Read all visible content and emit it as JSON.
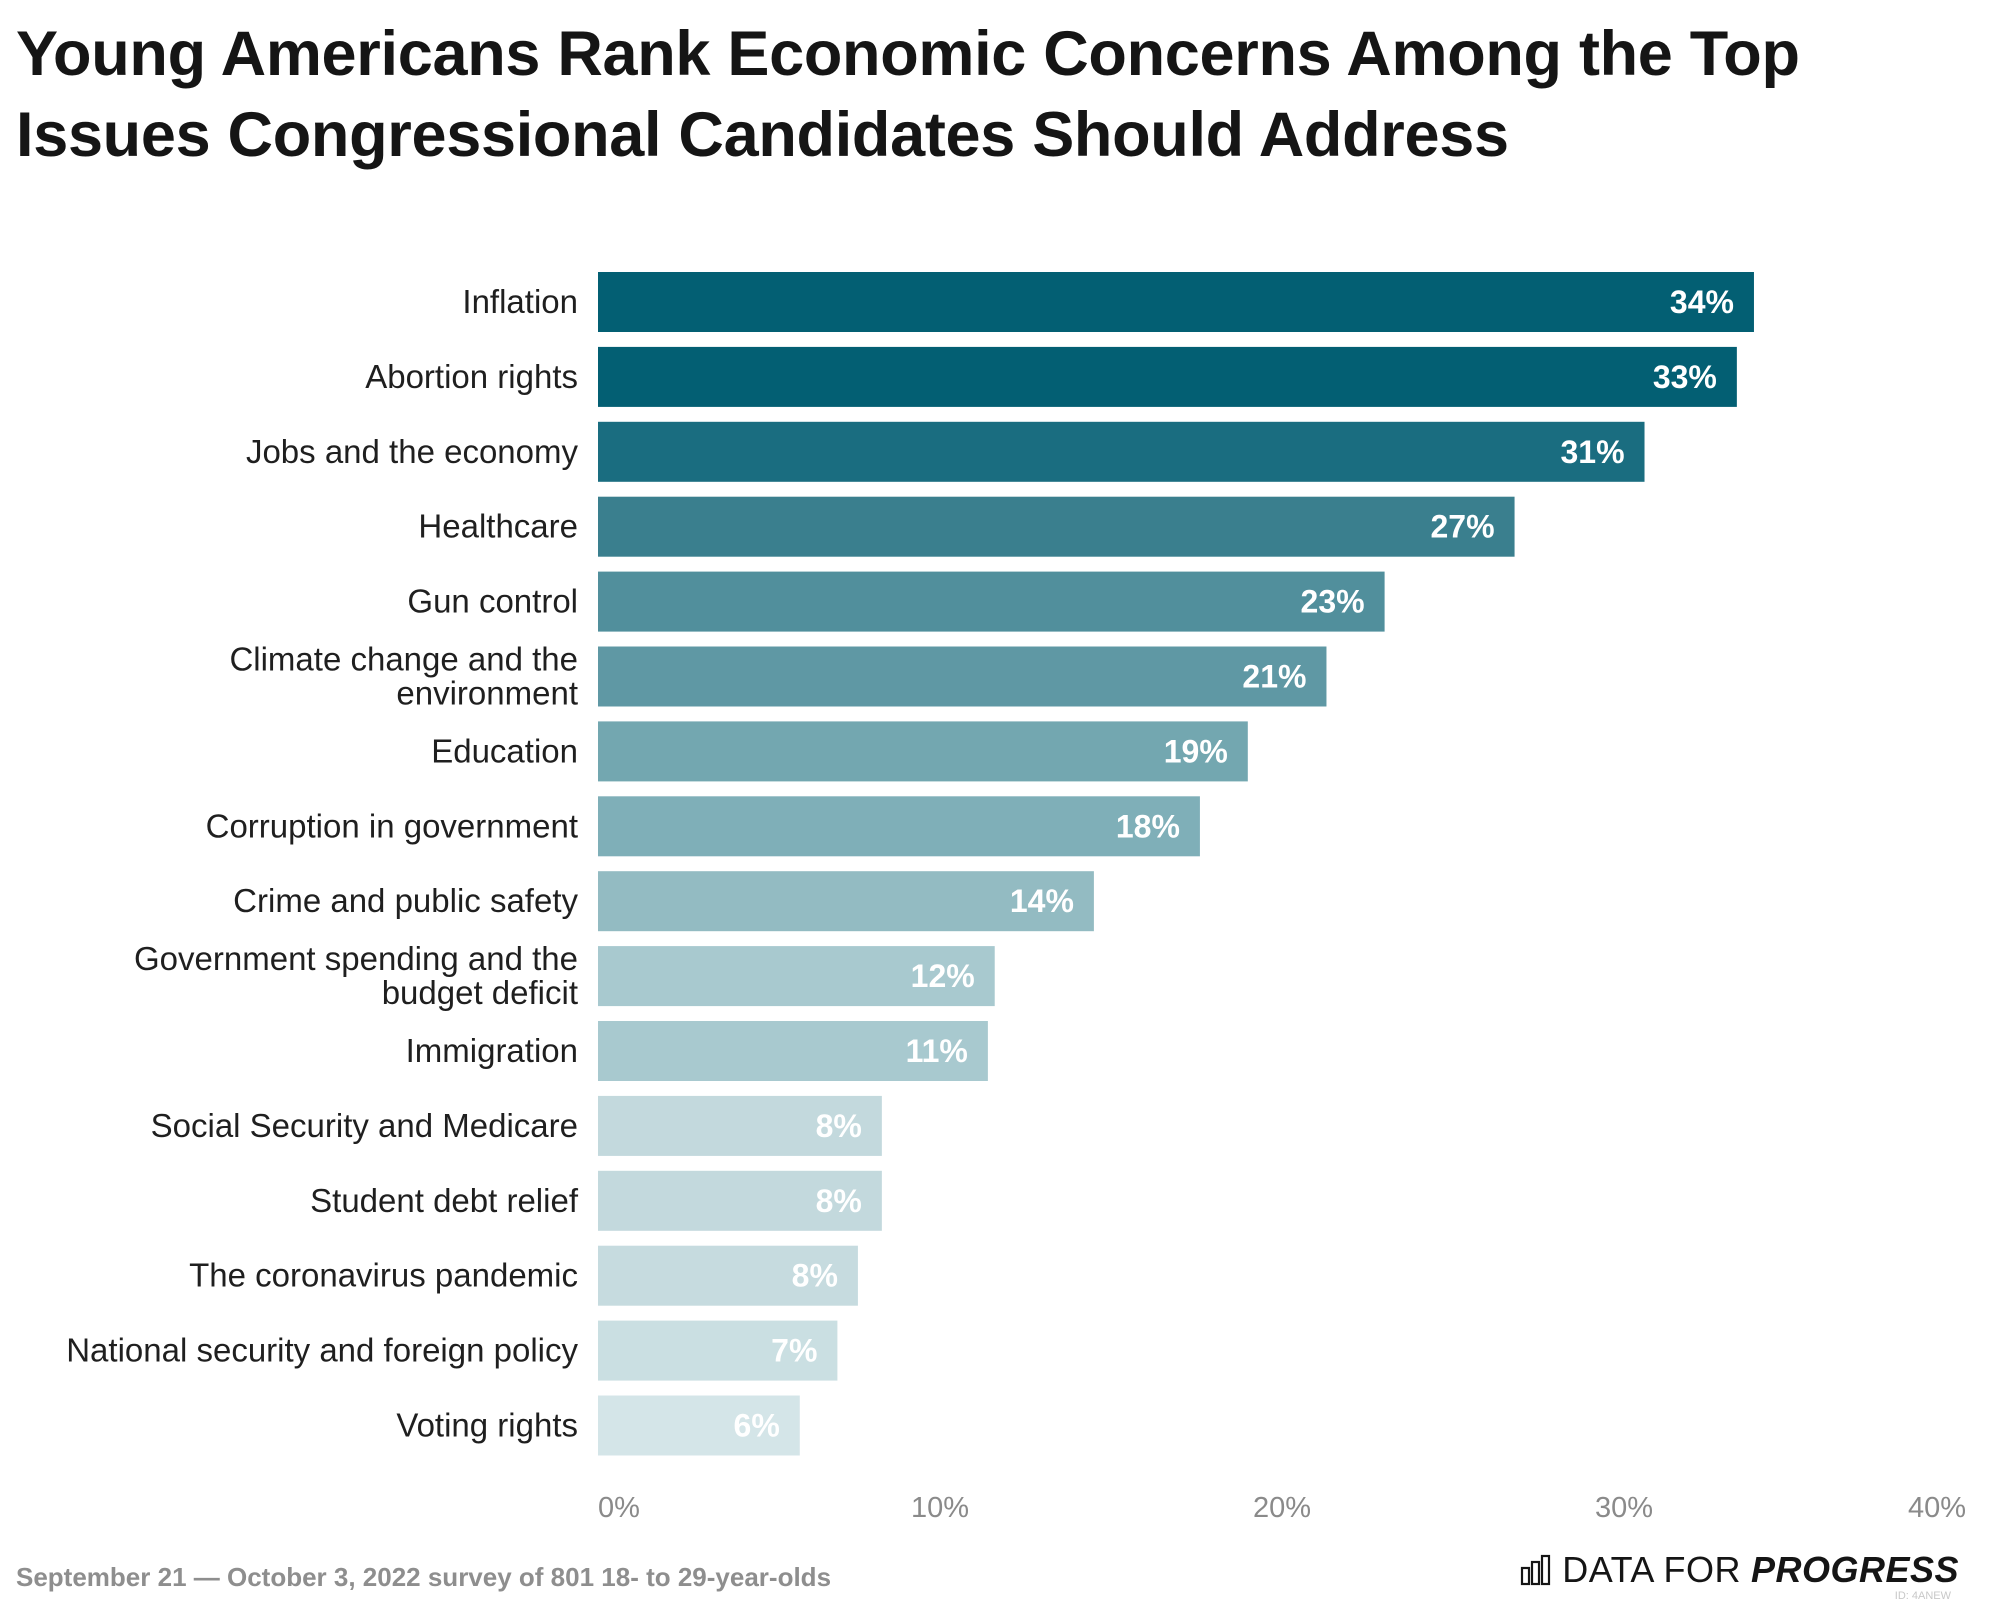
{
  "title": "Young Americans Rank Economic Concerns Among the Top Issues Congressional Candidates Should Address",
  "footer": {
    "note": "September 21 — October 3, 2022 survey of 801 18- to 29-year-olds",
    "brand_prefix": "DATA FOR",
    "brand_suffix": "PROGRESS",
    "brand_id": "ID: 4ANEW",
    "logo_icon": "bar-chart-icon"
  },
  "chart_data": {
    "type": "bar",
    "orientation": "horizontal",
    "title": "Young Americans Rank Economic Concerns Among the Top Issues Congressional Candidates Should Address",
    "xlabel": "",
    "ylabel": "",
    "xlim": [
      0,
      40
    ],
    "ticks": [
      0,
      10,
      20,
      30,
      40
    ],
    "tick_labels": [
      "0%",
      "10%",
      "20%",
      "30%",
      "40%"
    ],
    "grid": false,
    "categories": [
      [
        "Inflation"
      ],
      [
        "Abortion rights"
      ],
      [
        "Jobs and the economy"
      ],
      [
        "Healthcare"
      ],
      [
        "Gun control"
      ],
      [
        "Climate change and the",
        "environment"
      ],
      [
        "Education"
      ],
      [
        "Corruption in government"
      ],
      [
        "Crime and public safety"
      ],
      [
        "Government spending and the",
        "budget deficit"
      ],
      [
        "Immigration"
      ],
      [
        "Social Security and Medicare"
      ],
      [
        "Student debt relief"
      ],
      [
        "The coronavirus pandemic"
      ],
      [
        "National security and foreign policy"
      ],
      [
        "Voting rights"
      ]
    ],
    "values": [
      33.8,
      33.3,
      30.6,
      26.8,
      23.0,
      21.3,
      19.0,
      17.6,
      14.5,
      11.6,
      11.4,
      8.3,
      8.3,
      7.6,
      7.0,
      5.9
    ],
    "value_labels": [
      "34%",
      "33%",
      "31%",
      "27%",
      "23%",
      "21%",
      "19%",
      "18%",
      "14%",
      "12%",
      "11%",
      "8%",
      "8%",
      "8%",
      "7%",
      "6%"
    ],
    "colors": [
      "#035f73",
      "#035f73",
      "#1a6d80",
      "#3a7f8e",
      "#518f9c",
      "#5f98a4",
      "#73a7b0",
      "#7fafb8",
      "#93bbc2",
      "#a8c9cf",
      "#a8c9cf",
      "#c3d9dd",
      "#c3d9dd",
      "#c6dbdf",
      "#cadfe2",
      "#d4e5e8"
    ]
  }
}
